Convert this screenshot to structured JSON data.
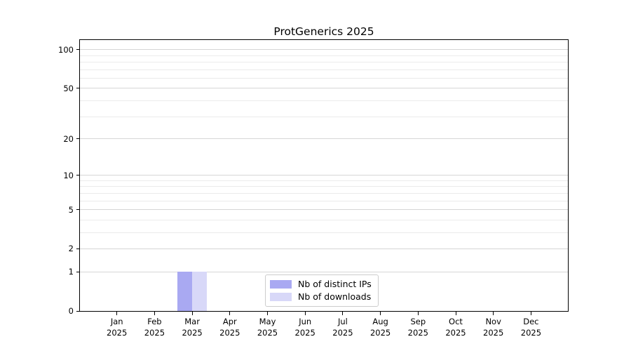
{
  "chart_data": {
    "type": "bar",
    "title": "ProtGenerics 2025",
    "xlabel": "",
    "ylabel": "",
    "months": [
      "Jan",
      "Feb",
      "Mar",
      "Apr",
      "May",
      "Jun",
      "Jul",
      "Aug",
      "Sep",
      "Oct",
      "Nov",
      "Dec"
    ],
    "year": "2025",
    "categories": [
      "Jan 2025",
      "Feb 2025",
      "Mar 2025",
      "Apr 2025",
      "May 2025",
      "Jun 2025",
      "Jul 2025",
      "Aug 2025",
      "Sep 2025",
      "Oct 2025",
      "Nov 2025",
      "Dec 2025"
    ],
    "series": [
      {
        "name": "Nb of distinct IPs",
        "color": "#a9a9f2",
        "values": [
          0,
          0,
          1,
          0,
          0,
          0,
          0,
          0,
          0,
          0,
          0,
          0
        ]
      },
      {
        "name": "Nb of downloads",
        "color": "#d8d8f8",
        "values": [
          0,
          0,
          1,
          0,
          0,
          0,
          0,
          0,
          0,
          0,
          0,
          0
        ]
      }
    ],
    "yscale": "log1p",
    "ylim": [
      0,
      119
    ],
    "yticks": [
      0,
      1,
      2,
      5,
      10,
      20,
      50,
      100
    ],
    "ytick_labels": [
      "0",
      "1",
      "2",
      "5",
      "10",
      "20",
      "50",
      "100"
    ],
    "minor_yticks": [
      3,
      4,
      6,
      7,
      8,
      9,
      30,
      40,
      60,
      70,
      80,
      90
    ],
    "grid": "horizontal",
    "legend_position": "lower-center-inside"
  },
  "colors": {
    "bar_distinct_ips": "#a9a9f2",
    "bar_downloads": "#d8d8f8",
    "grid_major": "#d6d6d6",
    "grid_minor": "#ebebeb",
    "spine": "#000000",
    "legend_border": "#cccccc",
    "background": "#ffffff"
  }
}
